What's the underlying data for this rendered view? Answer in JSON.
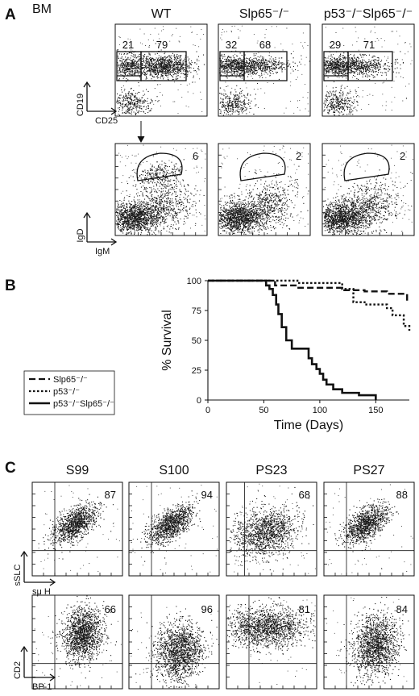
{
  "panels": {
    "A": {
      "letter": "A",
      "tissue": "BM",
      "columns": [
        "WT",
        "Slp65⁻/⁻",
        "p53⁻/⁻Slp65⁻/⁻"
      ],
      "row1": {
        "y_label": "CD19",
        "x_label": "CD25",
        "values": [
          [
            "21",
            "79"
          ],
          [
            "32",
            "68"
          ],
          [
            "29",
            "71"
          ]
        ]
      },
      "row2": {
        "y_label": "IgD",
        "x_label": "IgM",
        "values": [
          "6",
          "2",
          "2"
        ]
      }
    },
    "B": {
      "letter": "B",
      "legend": [
        {
          "label": "Slp65⁻/⁻",
          "style": "dashed"
        },
        {
          "label": "p53⁻/⁻",
          "style": "dotted"
        },
        {
          "label": "p53⁻/⁻Slp65⁻/⁻",
          "style": "solid"
        }
      ],
      "y_ticks": [
        "0",
        "25",
        "50",
        "75",
        "100"
      ],
      "x_ticks": [
        "0",
        "50",
        "100",
        "150"
      ]
    },
    "C": {
      "letter": "C",
      "columns": [
        "S99",
        "S100",
        "PS23",
        "PS27"
      ],
      "row1": {
        "y_label": "sSLC",
        "x_label": "sμ H",
        "values": [
          "87",
          "94",
          "68",
          "88"
        ]
      },
      "row2": {
        "y_label": "CD2",
        "x_label": "BP-1",
        "values": [
          "66",
          "96",
          "81",
          "84"
        ]
      }
    }
  },
  "chart_data": {
    "type": "line",
    "xlabel": "Time (Days)",
    "ylabel": "% Survival",
    "xlim": [
      0,
      180
    ],
    "ylim": [
      0,
      100
    ],
    "series": [
      {
        "name": "Slp65⁻/⁻",
        "style": "dashed",
        "x": [
          0,
          48,
          60,
          80,
          100,
          120,
          140,
          160,
          170,
          178,
          180
        ],
        "y": [
          100,
          100,
          96,
          94,
          94,
          92,
          91,
          89,
          89,
          83,
          83
        ]
      },
      {
        "name": "p53⁻/⁻",
        "style": "dotted",
        "x": [
          0,
          75,
          80,
          110,
          120,
          130,
          140,
          160,
          165,
          175,
          180
        ],
        "y": [
          100,
          100,
          98,
          98,
          93,
          82,
          80,
          77,
          71,
          62,
          58
        ]
      },
      {
        "name": "p53⁻/⁻Slp65⁻/⁻",
        "style": "solid",
        "x": [
          0,
          48,
          52,
          55,
          58,
          61,
          63,
          66,
          70,
          75,
          85,
          90,
          93,
          97,
          100,
          103,
          106,
          112,
          120,
          135,
          150
        ],
        "y": [
          100,
          100,
          96,
          93,
          88,
          80,
          72,
          61,
          50,
          43,
          43,
          35,
          30,
          26,
          22,
          17,
          13,
          9,
          6,
          4,
          0
        ]
      }
    ]
  },
  "colors": {
    "ink": "#111111",
    "background": "#ffffff",
    "dots": "#1a1a1a"
  }
}
